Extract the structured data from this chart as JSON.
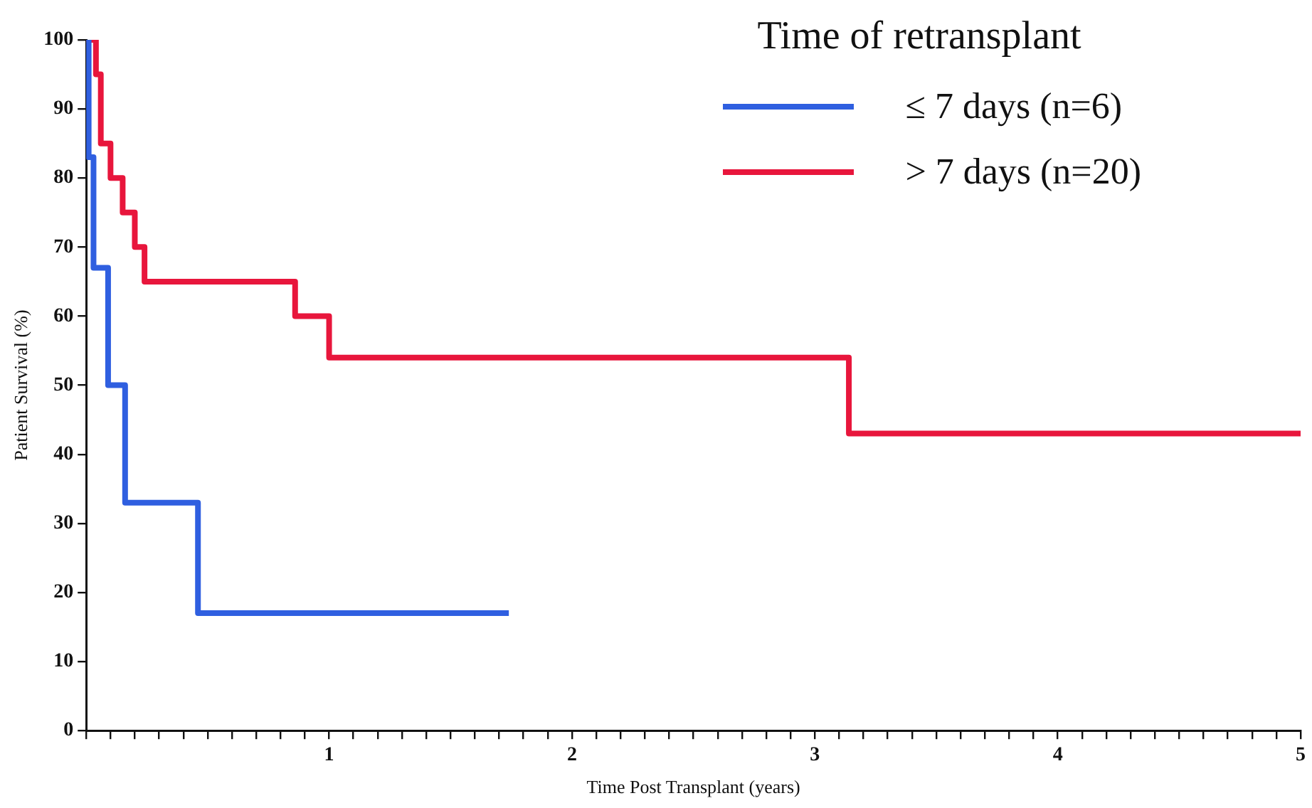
{
  "chart_data": {
    "type": "step",
    "xlabel": "Time Post Transplant (years)",
    "ylabel": "Patient Survival (%)",
    "legend_title": "Time of retransplant",
    "legend": "top right",
    "grid": false,
    "marker": "none",
    "line_style": "solid",
    "xlim": [
      0,
      5
    ],
    "ylim": [
      0,
      100
    ],
    "xticks": [
      {
        "value": 0,
        "label": null
      },
      {
        "value": 0.1,
        "label": null
      },
      {
        "value": 0.2,
        "label": null
      },
      {
        "value": 0.3,
        "label": null
      },
      {
        "value": 0.4,
        "label": null
      },
      {
        "value": 0.5,
        "label": null
      },
      {
        "value": 0.6,
        "label": null
      },
      {
        "value": 0.7,
        "label": null
      },
      {
        "value": 0.8,
        "label": null
      },
      {
        "value": 0.9,
        "label": null
      },
      1,
      {
        "value": 1.1,
        "label": null
      },
      {
        "value": 1.2,
        "label": null
      },
      {
        "value": 1.3,
        "label": null
      },
      {
        "value": 1.4,
        "label": null
      },
      {
        "value": 1.5,
        "label": null
      },
      {
        "value": 1.6,
        "label": null
      },
      {
        "value": 1.7,
        "label": null
      },
      {
        "value": 1.8,
        "label": null
      },
      {
        "value": 1.9,
        "label": null
      },
      2,
      {
        "value": 2.1,
        "label": null
      },
      {
        "value": 2.2,
        "label": null
      },
      {
        "value": 2.3,
        "label": null
      },
      {
        "value": 2.4,
        "label": null
      },
      {
        "value": 2.5,
        "label": null
      },
      {
        "value": 2.6,
        "label": null
      },
      {
        "value": 2.7,
        "label": null
      },
      {
        "value": 2.8,
        "label": null
      },
      {
        "value": 2.9,
        "label": null
      },
      3,
      {
        "value": 3.1,
        "label": null
      },
      {
        "value": 3.2,
        "label": null
      },
      {
        "value": 3.3,
        "label": null
      },
      {
        "value": 3.4,
        "label": null
      },
      {
        "value": 3.5,
        "label": null
      },
      {
        "value": 3.6,
        "label": null
      },
      {
        "value": 3.7,
        "label": null
      },
      {
        "value": 3.8,
        "label": null
      },
      {
        "value": 3.9,
        "label": null
      },
      4,
      {
        "value": 4.1,
        "label": null
      },
      {
        "value": 4.2,
        "label": null
      },
      {
        "value": 4.3,
        "label": null
      },
      {
        "value": 4.4,
        "label": null
      },
      {
        "value": 4.5,
        "label": null
      },
      {
        "value": 4.6,
        "label": null
      },
      {
        "value": 4.7,
        "label": null
      },
      {
        "value": 4.8,
        "label": null
      },
      {
        "value": 4.9,
        "label": null
      },
      5
    ],
    "yticks": [
      0,
      10,
      20,
      30,
      40,
      50,
      60,
      70,
      80,
      90,
      100
    ],
    "series": [
      {
        "name": "≤ 7 days (n=6)",
        "color": "#2f5fe0",
        "x": [
          0,
          0.01,
          0.03,
          0.09,
          0.16,
          0.46,
          1.74
        ],
        "values": [
          100,
          83,
          67,
          50,
          33,
          17,
          17
        ]
      },
      {
        "name": "> 7 days (n=20)",
        "color": "#e8163c",
        "x": [
          0,
          0.04,
          0.06,
          0.1,
          0.15,
          0.2,
          0.24,
          0.86,
          1.0,
          3.14,
          5
        ],
        "values": [
          100,
          95,
          85,
          80,
          75,
          70,
          65,
          60,
          54,
          43,
          43
        ]
      }
    ]
  }
}
